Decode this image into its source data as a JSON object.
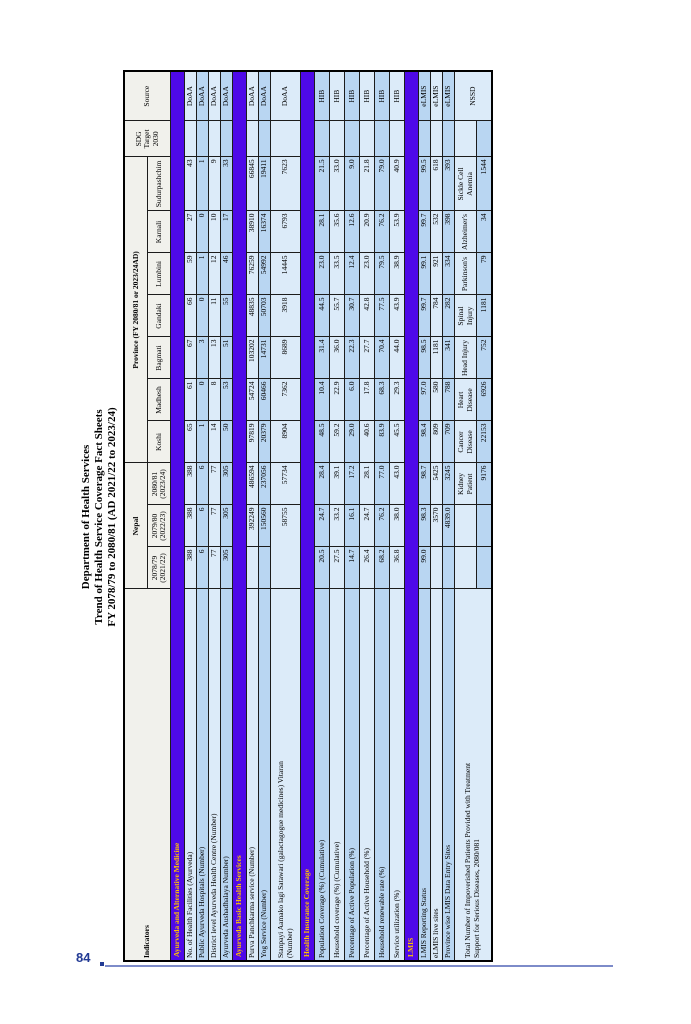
{
  "title": {
    "line1": "Department of Health Services",
    "line2": "Trend of Health Service Coverage Fact Sheets",
    "line3": "FY 2078/79 to 2080/81 (AD 2021/22 to 2023/24)"
  },
  "footer": {
    "page_number": "84"
  },
  "colors": {
    "section_bg": "#4e09e8",
    "section_text": "#ffc000",
    "row_light": "#dcebf9",
    "row_medium": "#b9d6f2",
    "header_bg": "#f1f1ec",
    "footer_blue": "#223a94"
  },
  "table": {
    "col_headers": {
      "indicators": "Indicators",
      "nepal": "Nepal",
      "province": "Province (FY 2080/81 or 2023/24AD)",
      "sdg": "SDG\nTarget\n2030",
      "source": "Source",
      "nepal_years": [
        "2078/79\n(2021/22)",
        "2079/80\n(2022/23)",
        "2080/81\n(2023/24)"
      ],
      "provinces": [
        "Koshi",
        "Madhesh",
        "Bagmati",
        "Gandaki",
        "Lumbini",
        "Karnali",
        "Sudurpashchim"
      ]
    },
    "sections": [
      {
        "title": "Ayurveda and Alternative Medicine",
        "rows": [
          {
            "label": "No. of Health Facilities (Ayurveda)",
            "values": [
              "388",
              "388",
              "388",
              "65",
              "61",
              "67",
              "66",
              "59",
              "27",
              "43",
              "",
              "DoAA"
            ]
          },
          {
            "label": "Public Ayurveda Hospitals (Number)",
            "values": [
              "6",
              "6",
              "6",
              "1",
              "0",
              "3",
              "0",
              "1",
              "0",
              "1",
              "",
              "DoAA"
            ]
          },
          {
            "label": "District level Ayurveda Health Centre (Number)",
            "values": [
              "77",
              "77",
              "77",
              "14",
              "8",
              "13",
              "11",
              "12",
              "10",
              "9",
              "",
              "DoAA"
            ]
          },
          {
            "label": "Ayurveda Aushadhalaya Number)",
            "values": [
              "305",
              "305",
              "305",
              "50",
              "53",
              "51",
              "55",
              "46",
              "17",
              "33",
              "",
              "DoAA"
            ]
          }
        ]
      },
      {
        "title": "Ayurveda Basic Health Services",
        "rows": [
          {
            "label": "Purva Panchkarma service (Number)",
            "values": [
              "",
              "392249",
              "486594",
              "97819",
              "54724",
              "103202",
              "48835",
              "76259",
              "38910",
              "66845",
              "",
              "DoAA"
            ]
          },
          {
            "label": "Yog Service (Number)",
            "values": [
              "",
              "150560",
              "237056",
              "20379",
              "60466",
              "14731",
              "50703",
              "54992",
              "16374",
              "19411",
              "",
              "DoAA"
            ]
          },
          {
            "label": "Stanpayi Aamako lagi Satawari (galactagogue medicines) Vitaran\n(Number)",
            "tall": true,
            "values": [
              {
                "text": "58755",
                "colspan": 2
              },
              "57734",
              "8904",
              "7362",
              "8689",
              "3918",
              "14445",
              "6793",
              "7623",
              "",
              "DoAA"
            ]
          }
        ]
      },
      {
        "title": "Health Insurance Coverage",
        "row_height_class": "row15",
        "rows": [
          {
            "label": "Population Coverage (%) (Cumulative)",
            "values": [
              "20.5",
              "24.7",
              "28.4",
              "48.5",
              "10.4",
              "31.4",
              "44.5",
              "23.0",
              "28.1",
              "21.5",
              "",
              "HIB"
            ]
          },
          {
            "label": "Household coverage  (%) (Cumulative)",
            "values": [
              "27.5",
              "33.2",
              "39.1",
              "59.2",
              "22.9",
              "36.0",
              "55.7",
              "33.5",
              "35.6",
              "33.0",
              "",
              "HIB"
            ]
          },
          {
            "label": "Percentage of Active Population (%)",
            "values": [
              "14.7",
              "16.1",
              "17.2",
              "29.0",
              "6.0",
              "22.3",
              "30.7",
              "12.4",
              "12.6",
              "9.0",
              "",
              "HIB"
            ]
          },
          {
            "label": "Percentage of Active Household (%)",
            "values": [
              "26.4",
              "24.7",
              "28.1",
              "40.6",
              "17.8",
              "27.7",
              "42.8",
              "23.0",
              "20.9",
              "21.8",
              "",
              "HIB"
            ]
          },
          {
            "label": "Household renewable rate  (%)",
            "values": [
              "68.2",
              "76.2",
              "77.0",
              "83.9",
              "68.3",
              "70.4",
              "77.5",
              "79.5",
              "76.2",
              "79.0",
              "",
              "HIB"
            ]
          },
          {
            "label": "Service utilization  (%)",
            "values": [
              "36.8",
              "38.0",
              "43.0",
              "45.5",
              "29.3",
              "44.0",
              "43.9",
              "38.9",
              "53.9",
              "40.9",
              "",
              "HIB"
            ]
          }
        ]
      },
      {
        "title": "LMIS",
        "rows": [
          {
            "label": "LMIS Reporting Status",
            "values": [
              "99.0",
              "98.3",
              "98.7",
              "98.4",
              "97.0",
              "98.5",
              "99.7",
              "99.1",
              "99.7",
              "99.5",
              "",
              "eLMIS"
            ]
          },
          {
            "label": "eLMIS live sites",
            "values": [
              "",
              "3570",
              "5425",
              "809",
              "580",
              "1181",
              "784",
              "921",
              "532",
              "618",
              "",
              "eLMIS"
            ]
          },
          {
            "label": "Province wise LMIS Data Entry Sites",
            "values": [
              "",
              "4839.0",
              "3245",
              "709",
              "788",
              "341",
              "282",
              "334",
              "398",
              "393",
              "",
              "eLMIS"
            ]
          },
          {
            "label": "Total Number of Impoverished Patients Provided with Treatment\nSupport for Serious Diseases, 2080/081",
            "source": "NSSD",
            "sub_rows": [
              [
                "",
                "",
                "Kidney Patient",
                "Cancer Disease",
                "Heart Disease",
                "Head Injury",
                "Spinal Injury",
                "Parkinson's",
                "Alzheimer's",
                "Sickle Cell Anemia",
                ""
              ],
              [
                "",
                "",
                "9176",
                "22153",
                "6926",
                "752",
                "1181",
                "79",
                "34",
                "1544",
                ""
              ]
            ]
          }
        ]
      }
    ]
  }
}
